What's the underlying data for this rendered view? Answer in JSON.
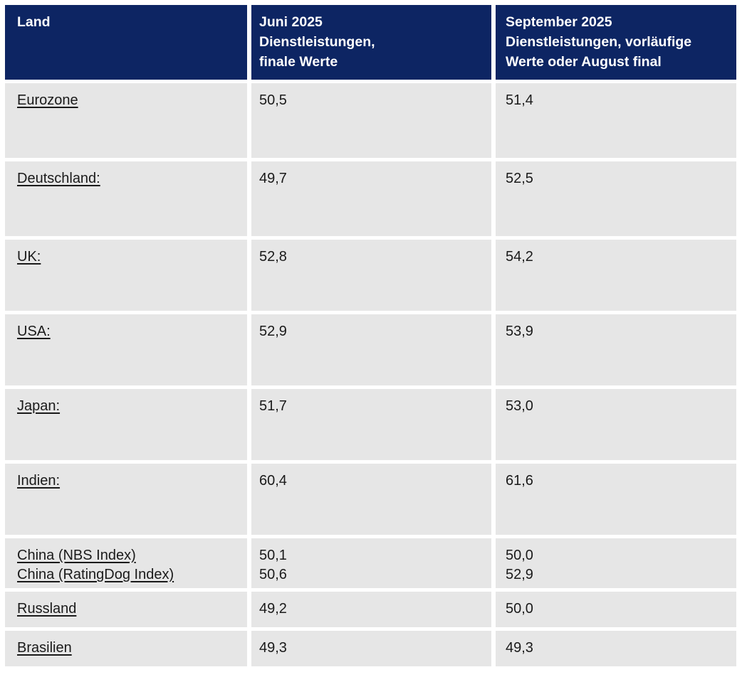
{
  "colors": {
    "header_bg": "#0d2563",
    "header_text": "#ffffff",
    "row_bg": "#e6e6e6",
    "body_text": "#1a1a1a"
  },
  "header": {
    "land": "Land",
    "juni": "Juni 2025\nDienstleistungen,\nfinale Werte",
    "september": "September 2025\nDienstleistungen, vorläufige\nWerte oder August final"
  },
  "rows": [
    {
      "land": "Eurozone",
      "juni": "50,5",
      "september": "51,4"
    },
    {
      "land": "Deutschland:",
      "juni": "49,7",
      "september": "52,5"
    },
    {
      "land": "UK:",
      "juni": "52,8",
      "september": "54,2"
    },
    {
      "land": "USA:",
      "juni": "52,9",
      "september": "53,9"
    },
    {
      "land": "Japan:",
      "juni": "51,7",
      "september": "53,0"
    },
    {
      "land": "Indien:",
      "juni": "60,4",
      "september": "61,6"
    },
    {
      "land": "China (NBS Index)\nChina (RatingDog Index)",
      "juni": "50,1\n50,6",
      "september": "50,0\n52,9"
    },
    {
      "land": "Russland",
      "juni": "49,2",
      "september": "50,0"
    },
    {
      "land": "Brasilien",
      "juni": "49,3",
      "september": "49,3"
    }
  ],
  "chart_data": {
    "type": "table",
    "title": "",
    "columns": [
      "Land",
      "Juni 2025 Dienstleistungen, finale Werte",
      "September 2025 Dienstleistungen, vorläufige Werte oder August final"
    ],
    "rows": [
      [
        "Eurozone",
        "50,5",
        "51,4"
      ],
      [
        "Deutschland:",
        "49,7",
        "52,5"
      ],
      [
        "UK:",
        "52,8",
        "54,2"
      ],
      [
        "USA:",
        "52,9",
        "53,9"
      ],
      [
        "Japan:",
        "51,7",
        "53,0"
      ],
      [
        "Indien:",
        "60,4",
        "61,6"
      ],
      [
        "China (NBS Index)",
        "50,1",
        "50,0"
      ],
      [
        "China (RatingDog Index)",
        "50,6",
        "52,9"
      ],
      [
        "Russland",
        "49,2",
        "50,0"
      ],
      [
        "Brasilien",
        "49,3",
        "49,3"
      ]
    ]
  }
}
